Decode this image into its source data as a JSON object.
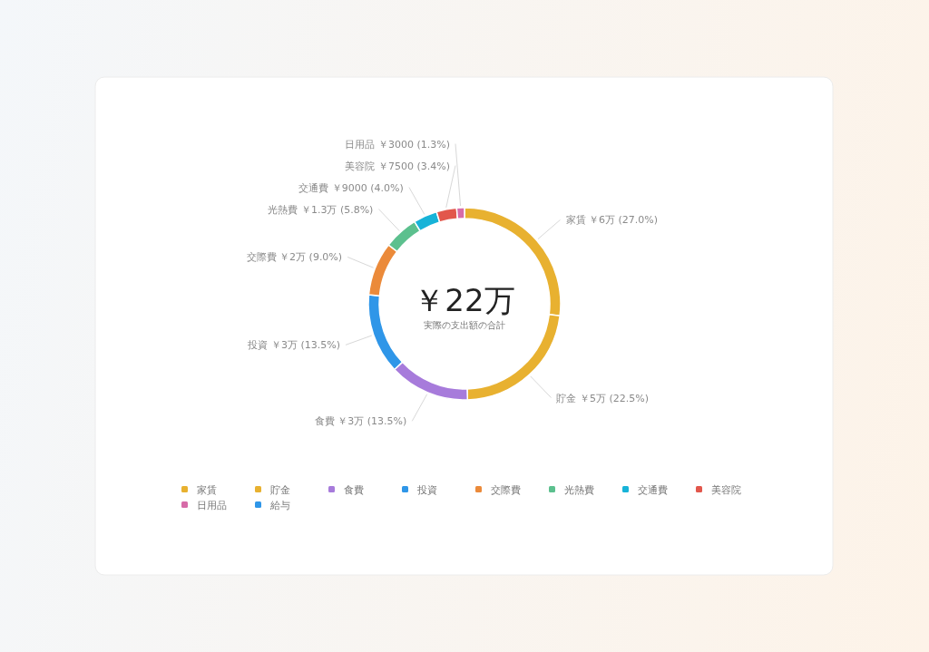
{
  "chart_data": {
    "type": "donut",
    "title": "￥22万",
    "subtitle": "実際の支出額の合計",
    "categories": [
      "家賃",
      "貯金",
      "食費",
      "投資",
      "交際費",
      "光熱費",
      "交通費",
      "美容院",
      "日用品",
      "給与"
    ],
    "values": [
      27.0,
      22.5,
      13.5,
      13.5,
      9.0,
      5.8,
      4.0,
      3.4,
      1.3,
      0
    ],
    "value_labels": [
      "￥6万 (27.0%)",
      "￥5万 (22.5%)",
      "￥3万 (13.5%)",
      "￥3万 (13.5%)",
      "￥2万 (9.0%)",
      "￥1.3万 (5.8%)",
      "￥9000 (4.0%)",
      "￥7500 (3.4%)",
      "￥3000 (1.3%)",
      null
    ],
    "colors": [
      "#e8b130",
      "#e8b130",
      "#a77bdb",
      "#2f96e8",
      "#eb8a3a",
      "#5cc08e",
      "#17b3d8",
      "#e2574c",
      "#d76ba8",
      "#2f96e8"
    ],
    "legend": "bottom"
  }
}
